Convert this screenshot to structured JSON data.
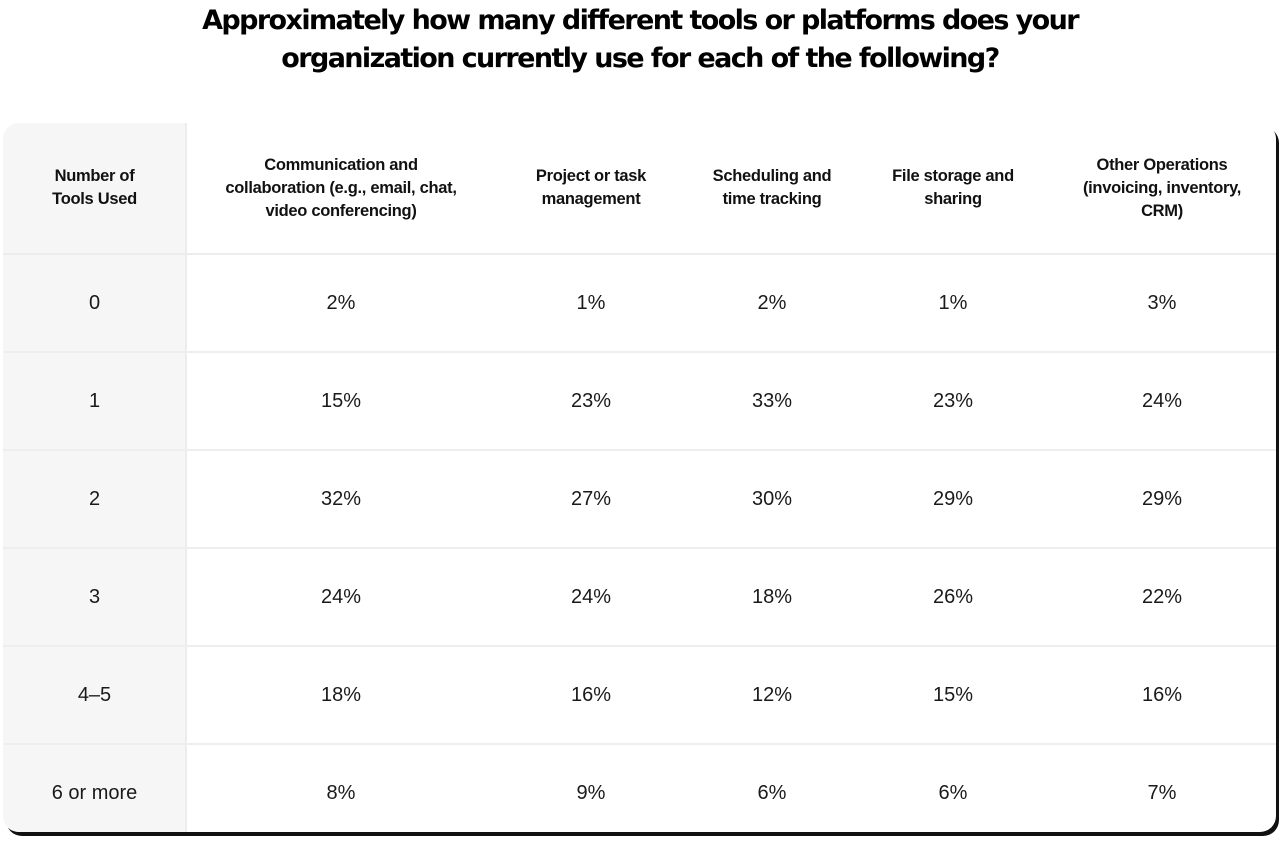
{
  "title": {
    "line1": "Approximately how many different tools or platforms does your",
    "line2": "organization currently use for each of the following?"
  },
  "table": {
    "headers": [
      [
        "Number of",
        "Tools Used"
      ],
      [
        "Communication and",
        "collaboration (e.g., email, chat,",
        "video conferencing)"
      ],
      [
        "Project or task",
        "management"
      ],
      [
        "Scheduling and",
        "time tracking"
      ],
      [
        "File storage and",
        "sharing"
      ],
      [
        "Other Operations",
        "(invoicing, inventory,",
        "CRM)"
      ]
    ],
    "rows": [
      [
        "0",
        "2%",
        "1%",
        "2%",
        "1%",
        "3%"
      ],
      [
        "1",
        "15%",
        "23%",
        "33%",
        "23%",
        "24%"
      ],
      [
        "2",
        "32%",
        "27%",
        "30%",
        "29%",
        "29%"
      ],
      [
        "3",
        "24%",
        "24%",
        "18%",
        "26%",
        "22%"
      ],
      [
        "4–5",
        "18%",
        "16%",
        "12%",
        "15%",
        "16%"
      ],
      [
        "6 or more",
        "8%",
        "9%",
        "6%",
        "6%",
        "7%"
      ]
    ]
  },
  "chart_data": {
    "type": "table",
    "title": "Approximately how many different tools or platforms does your organization currently use for each of the following?",
    "row_header": "Number of Tools Used",
    "categories": [
      "0",
      "1",
      "2",
      "3",
      "4–5",
      "6 or more"
    ],
    "series": [
      {
        "name": "Communication and collaboration (e.g., email, chat, video conferencing)",
        "values": [
          2,
          15,
          32,
          24,
          18,
          8
        ]
      },
      {
        "name": "Project or task management",
        "values": [
          1,
          23,
          27,
          24,
          16,
          9
        ]
      },
      {
        "name": "Scheduling and time tracking",
        "values": [
          2,
          33,
          30,
          18,
          12,
          6
        ]
      },
      {
        "name": "File storage and sharing",
        "values": [
          1,
          23,
          29,
          26,
          15,
          6
        ]
      },
      {
        "name": "Other Operations (invoicing, inventory, CRM)",
        "values": [
          3,
          24,
          29,
          22,
          16,
          7
        ]
      }
    ],
    "unit": "%"
  },
  "colors": {
    "background": "#ffffff",
    "card": "#ffffff",
    "first_column": "#f6f6f6",
    "grid_line": "#ececec",
    "shadow": "#111111",
    "text": "#1a1a1a"
  }
}
